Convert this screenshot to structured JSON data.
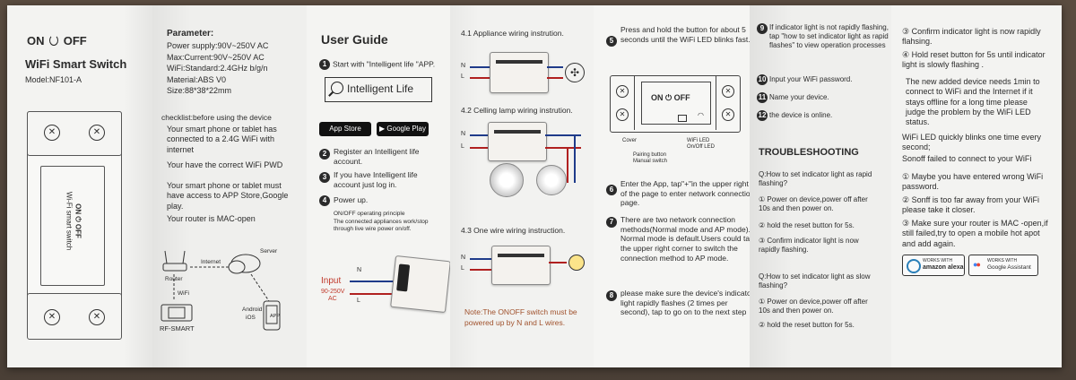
{
  "panel1": {
    "logo_on": "ON",
    "logo_off": "OFF",
    "title": "WiFi Smart Switch",
    "model": "Model:NF101-A",
    "device_on": "ON",
    "device_off": "OFF",
    "device_text": "Wi-Fi smart switch"
  },
  "panel2": {
    "heading": "Parameter:",
    "params": [
      "Power supply:90V~250V AC",
      "Max:Current:90V~250V AC",
      "WiFi:Standard:2.4GHz b/g/n",
      "Material:ABS V0",
      "Size:88*38*22mm"
    ],
    "checklist_heading": "checklist:before using the device",
    "checklist": [
      "Your smart phone or tablet has connected to a 2.4G WiFi with internet",
      "Your have the correct WiFi PWD",
      "Your smart phone or tablet must have access to APP Store,Google play.",
      "Your router is MAC-open"
    ],
    "diagram": {
      "internet": "Internet",
      "server": "Server",
      "router": "Router",
      "wifi": "WiFi",
      "rf_smart": "RF-SMART",
      "android": "Android",
      "ios": "iOS",
      "app": "APP"
    }
  },
  "panel3": {
    "heading": "User Guide",
    "step1": "Start with \"Intelligent life \"APP.",
    "app_name": "Intelligent Life",
    "app_store": "App Store",
    "google_play": "Google Play",
    "step2": "Register an Intelligent life account.",
    "step3": "If you have Intelligent life account just log in.",
    "step4": "Power up.",
    "onoff_line1": "ON/OFF operating principle",
    "onoff_line2": "The connected appliances work/stop through live wire power on/off.",
    "input_label": "Input",
    "voltage": "90-250V",
    "ac": "AC",
    "n": "N",
    "l": "L"
  },
  "panel4": {
    "s41": "4.1 Appliance wiring instrution.",
    "s42": "4.2 Celling lamp wiring instrution.",
    "s43": "4.3 One wire wiring instruction.",
    "n": "N",
    "l": "L",
    "note": "Note:The ONOFF switch must be powered up by N and L wires."
  },
  "panel5": {
    "step5": "Press and hold the button for about 5 seconds until the WiFi LED blinks fast.",
    "diag_on": "ON",
    "diag_off": "OFF",
    "cover": "Cover",
    "pairing": "Pairing button",
    "manual": "Manual switch",
    "wifi_led": "WiFi LED",
    "onoff_led": "On/Off LED",
    "step6": "Enter the App, tap\"+\"in the upper right of the page to enter network connection page.",
    "step7": "There are two network connection methods(Normal mode and AP mode). Normal mode is default.Users could tap the upper right corner to switch the connection method to AP mode.",
    "step8": "please make sure the device's indicator light rapidly flashes (2 times per second), tap to go on to the next step"
  },
  "panel6": {
    "step9": "If indicator light is not rapidly flashing, tap \"how to set indicator light as rapid flashes\" to view operation processes",
    "step10": "Input your WiFi password.",
    "step11": "Name your device.",
    "step12": "the device is online.",
    "troubleshooting": "TROUBLESHOOTING",
    "q1": "Q:How to set indicator light as rapid flashing?",
    "q1_steps": [
      "Power on device,power off after 10s and then power on.",
      "hold the reset button for 5s.",
      "Confirm indicator light is now rapidly flashing."
    ],
    "q2": "Q:How to set indicator light as slow flashing?",
    "q2_steps": [
      "Power on device,power off after 10s and then power on.",
      "hold the reset button for 5s."
    ]
  },
  "panel7": {
    "a1": "Confirm indicator light is now rapidly flahsing.",
    "a2": "Hold reset button for 5s until indicator light is slowly flashing .",
    "para1": "The new added device needs 1min to connect to WiFi and the Internet if it stays offline for a long time please judge the problem by the WiFi LED status.",
    "para2": "WiFi LED quickly blinks one time every second;",
    "para3": "Sonoff failed to connect to your WiFi",
    "reasons": [
      "Maybe you have entered wrong WiFi password.",
      "Sonff is too far away from your WiFi please take it closer.",
      "Make sure your router is MAC -open,if still failed,try to open a mobile hot apot and add again."
    ],
    "works_with": "WORKS WITH",
    "amazon": "amazon alexa",
    "google": "Google Assistant"
  }
}
